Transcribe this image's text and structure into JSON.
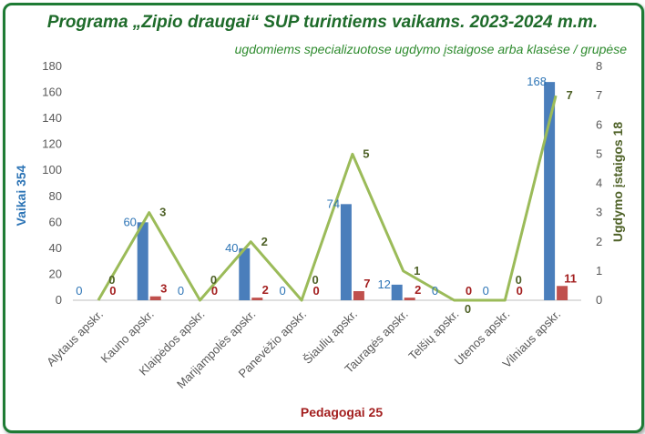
{
  "chart_data": {
    "type": "bar+line",
    "title": "Programa „Zipio draugai“ SUP turintiems vaikams. 2023-2024 m.m.",
    "subtitle": "ugdomiems specializuotose ugdymo įstaigose arba klasėse / grupėse",
    "categories": [
      "Alytaus apskr.",
      "Kauno apskr.",
      "Klaipėdos apskr.",
      "Marijampolės apskr.",
      "Panevėžio apskr.",
      "Šiaulių apskr.",
      "Tauragės apskr.",
      "Telšių apskr.",
      "Utenos apskr.",
      "Vilniaus apskr."
    ],
    "series": [
      {
        "name": "Vaikai",
        "axis": "left",
        "kind": "bar",
        "color": "#4a7ebb",
        "label_color": "#2e75b6",
        "values": [
          0,
          60,
          0,
          40,
          0,
          74,
          12,
          0,
          0,
          168
        ]
      },
      {
        "name": "Pedagogai",
        "axis": "left",
        "kind": "bar",
        "color": "#c0504d",
        "label_color": "#a31f1f",
        "values": [
          0,
          3,
          0,
          2,
          0,
          7,
          2,
          0,
          0,
          11
        ]
      },
      {
        "name": "Ugdymo įstaigos",
        "axis": "right",
        "kind": "line",
        "color": "#9bbb59",
        "label_color": "#4f6228",
        "values": [
          0,
          3,
          0,
          2,
          0,
          5,
          1,
          0,
          0,
          7
        ]
      }
    ],
    "ylabel_left": "Vaikai   354",
    "ylabel_right": "Ugdymo įstaigos   18",
    "xlabel": "Pedagogai   25",
    "ylim_left": [
      0,
      180
    ],
    "ylim_right": [
      0,
      8
    ],
    "yticks_left": [
      "0",
      "20",
      "40",
      "60",
      "80",
      "100",
      "120",
      "140",
      "160",
      "180"
    ],
    "yticks_right": [
      "0",
      "1",
      "2",
      "3",
      "4",
      "5",
      "6",
      "7",
      "8"
    ],
    "grid": false
  }
}
